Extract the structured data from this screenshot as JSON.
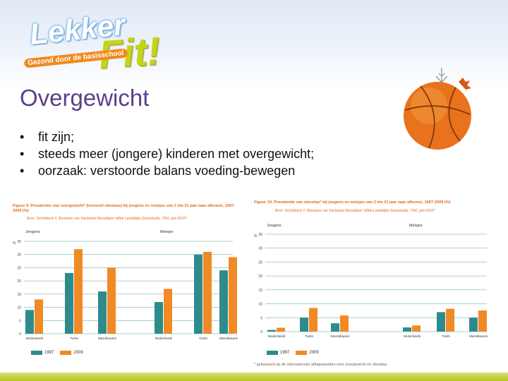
{
  "logo": {
    "word1": "Lekker",
    "word2": "Fit!",
    "tagline": "Gezond door de basisschool"
  },
  "slide": {
    "title": "Overgewicht",
    "bullets": [
      "fit zijn;",
      "steeds meer (jongere) kinderen met overgewicht;",
      "oorzaak: verstoorde balans voeding-bewegen"
    ]
  },
  "colors": {
    "title": "#5a3f8c",
    "series_1997": "#2e8b8c",
    "series_2009": "#f08a24",
    "ball": "#e8731c"
  },
  "icons": {
    "decoration": "basketball-ornament-icon"
  },
  "chart_data": [
    {
      "type": "bar",
      "title": "Figuur 9. Prevalentie van overgewicht* (inclusief obesitas) bij jongens en meisjes van 2 t/m 21 jaar naar afkomst, 1997-2009 (%)",
      "subtitle": "Bron: Schönbeck Y, Bouwens van Factsheet Resultaten Vijfde Landelijke Groeistudie, TNO, juni 2010*",
      "ylabel": "%",
      "ylim": [
        0,
        35
      ],
      "yticks": [
        0,
        5,
        10,
        15,
        20,
        25,
        30,
        35
      ],
      "groups": [
        "Jongens",
        "Meisjes"
      ],
      "categories": [
        "Nederlands",
        "Turks",
        "Marokkaans",
        "Nederlands",
        "Turks",
        "Marokkaans"
      ],
      "series": [
        {
          "name": "1997",
          "values": [
            9,
            23,
            16,
            12,
            30,
            24
          ]
        },
        {
          "name": "2009",
          "values": [
            13,
            32,
            25,
            17,
            31,
            29
          ]
        }
      ]
    },
    {
      "type": "bar",
      "title": "Figuur 10. Prevalentie van obesitas* bij jongens en meisjes van 2 t/m 21 jaar naar afkomst, 1997-2009 (%)",
      "subtitle": "Bron: Schönbeck Y, Bouwens van Factsheet Resultaten Vijfde Landelijke Groeistudie, TNO, juni 2010*",
      "ylabel": "%",
      "ylim": [
        0,
        35
      ],
      "yticks": [
        0,
        5,
        10,
        15,
        20,
        25,
        30,
        35
      ],
      "groups": [
        "Jongens",
        "Meisjes"
      ],
      "categories": [
        "Nederlands",
        "Turks",
        "Marokkaans",
        "Nederlands",
        "Turks",
        "Marokkaans"
      ],
      "series": [
        {
          "name": "1997",
          "values": [
            0.6,
            5,
            3,
            1.5,
            7,
            5
          ]
        },
        {
          "name": "2009",
          "values": [
            1.4,
            8.5,
            5.8,
            2.2,
            8.2,
            7.6
          ]
        }
      ],
      "footnote": "* gebaseerd op de internationale afkapwaarden voor overgewicht en obesitas"
    }
  ]
}
